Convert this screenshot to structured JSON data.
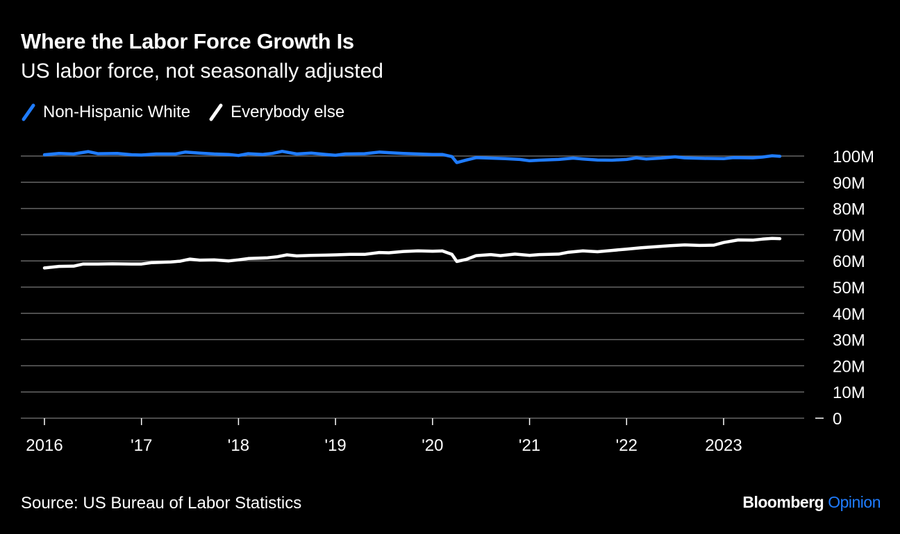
{
  "title": "Where the Labor Force Growth Is",
  "subtitle": "US labor force, not seasonally adjusted",
  "source": "Source: US Bureau of Labor Statistics",
  "brand": {
    "name": "Bloomberg",
    "product": "Opinion",
    "product_color": "#1f7cff"
  },
  "colors": {
    "white_series": "#1f7cff",
    "other_series": "#ffffff",
    "grid": "#666666",
    "axis_text": "#ffffff"
  },
  "legend": [
    {
      "label": "Non-Hispanic White",
      "color": "#1f7cff"
    },
    {
      "label": "Everybody else",
      "color": "#ffffff"
    }
  ],
  "chart_data": {
    "type": "line",
    "title": "Where the Labor Force Growth Is",
    "subtitle": "US labor force, not seasonally adjusted",
    "xlabel": "",
    "ylabel": "",
    "x_unit": "year",
    "xlim": [
      2015.75,
      2023.85
    ],
    "ylim": [
      0,
      100
    ],
    "y_unit": "millions",
    "y_ticks": [
      0,
      10,
      20,
      30,
      40,
      50,
      60,
      70,
      80,
      90,
      100
    ],
    "y_tick_labels": [
      "0",
      "10M",
      "20M",
      "30M",
      "40M",
      "50M",
      "60M",
      "70M",
      "80M",
      "90M",
      "100M"
    ],
    "x_ticks": [
      2016,
      2017,
      2018,
      2019,
      2020,
      2021,
      2022,
      2023
    ],
    "x_tick_labels": [
      "2016",
      "'17",
      "'18",
      "'19",
      "'20",
      "'21",
      "'22",
      "2023"
    ],
    "grid": true,
    "legend_position": "top-left",
    "series": [
      {
        "name": "Non-Hispanic White",
        "color": "#1f7cff",
        "points": [
          [
            2016.0,
            100.5
          ],
          [
            2016.15,
            101.0
          ],
          [
            2016.3,
            100.8
          ],
          [
            2016.45,
            101.7
          ],
          [
            2016.55,
            100.9
          ],
          [
            2016.75,
            101.0
          ],
          [
            2016.9,
            100.5
          ],
          [
            2017.0,
            100.4
          ],
          [
            2017.15,
            100.8
          ],
          [
            2017.35,
            100.8
          ],
          [
            2017.45,
            101.5
          ],
          [
            2017.6,
            101.1
          ],
          [
            2017.75,
            100.8
          ],
          [
            2017.9,
            100.6
          ],
          [
            2018.0,
            100.2
          ],
          [
            2018.1,
            100.9
          ],
          [
            2018.25,
            100.6
          ],
          [
            2018.35,
            101.0
          ],
          [
            2018.45,
            101.8
          ],
          [
            2018.6,
            100.8
          ],
          [
            2018.75,
            101.1
          ],
          [
            2018.9,
            100.6
          ],
          [
            2019.0,
            100.3
          ],
          [
            2019.1,
            100.8
          ],
          [
            2019.3,
            100.9
          ],
          [
            2019.45,
            101.5
          ],
          [
            2019.55,
            101.3
          ],
          [
            2019.7,
            101.0
          ],
          [
            2019.85,
            100.8
          ],
          [
            2020.0,
            100.6
          ],
          [
            2020.1,
            100.6
          ],
          [
            2020.2,
            99.8
          ],
          [
            2020.25,
            97.5
          ],
          [
            2020.35,
            98.5
          ],
          [
            2020.45,
            99.4
          ],
          [
            2020.6,
            99.2
          ],
          [
            2020.75,
            99.0
          ],
          [
            2020.9,
            98.7
          ],
          [
            2021.0,
            98.2
          ],
          [
            2021.1,
            98.4
          ],
          [
            2021.3,
            98.7
          ],
          [
            2021.45,
            99.2
          ],
          [
            2021.55,
            98.9
          ],
          [
            2021.7,
            98.5
          ],
          [
            2021.85,
            98.4
          ],
          [
            2022.0,
            98.7
          ],
          [
            2022.1,
            99.3
          ],
          [
            2022.2,
            98.9
          ],
          [
            2022.35,
            99.2
          ],
          [
            2022.5,
            99.7
          ],
          [
            2022.6,
            99.3
          ],
          [
            2022.8,
            99.1
          ],
          [
            2023.0,
            99.0
          ],
          [
            2023.1,
            99.4
          ],
          [
            2023.3,
            99.3
          ],
          [
            2023.4,
            99.6
          ],
          [
            2023.5,
            100.1
          ],
          [
            2023.58,
            99.9
          ]
        ]
      },
      {
        "name": "Everybody else",
        "color": "#ffffff",
        "points": [
          [
            2016.0,
            57.3
          ],
          [
            2016.15,
            57.9
          ],
          [
            2016.3,
            58.0
          ],
          [
            2016.4,
            58.8
          ],
          [
            2016.55,
            58.8
          ],
          [
            2016.7,
            58.9
          ],
          [
            2016.9,
            58.8
          ],
          [
            2017.0,
            58.8
          ],
          [
            2017.1,
            59.3
          ],
          [
            2017.3,
            59.6
          ],
          [
            2017.4,
            59.9
          ],
          [
            2017.5,
            60.7
          ],
          [
            2017.6,
            60.3
          ],
          [
            2017.75,
            60.4
          ],
          [
            2017.9,
            60.0
          ],
          [
            2018.0,
            60.4
          ],
          [
            2018.1,
            60.9
          ],
          [
            2018.3,
            61.2
          ],
          [
            2018.4,
            61.6
          ],
          [
            2018.5,
            62.3
          ],
          [
            2018.6,
            61.9
          ],
          [
            2018.75,
            62.1
          ],
          [
            2018.9,
            62.2
          ],
          [
            2019.0,
            62.3
          ],
          [
            2019.15,
            62.5
          ],
          [
            2019.3,
            62.5
          ],
          [
            2019.45,
            63.2
          ],
          [
            2019.55,
            63.1
          ],
          [
            2019.7,
            63.6
          ],
          [
            2019.85,
            63.8
          ],
          [
            2020.0,
            63.7
          ],
          [
            2020.1,
            63.8
          ],
          [
            2020.2,
            62.5
          ],
          [
            2020.25,
            59.8
          ],
          [
            2020.35,
            60.6
          ],
          [
            2020.45,
            62.0
          ],
          [
            2020.6,
            62.4
          ],
          [
            2020.7,
            62.0
          ],
          [
            2020.85,
            62.6
          ],
          [
            2021.0,
            62.1
          ],
          [
            2021.1,
            62.4
          ],
          [
            2021.3,
            62.6
          ],
          [
            2021.4,
            63.3
          ],
          [
            2021.55,
            63.8
          ],
          [
            2021.7,
            63.5
          ],
          [
            2021.85,
            64.0
          ],
          [
            2022.0,
            64.5
          ],
          [
            2022.15,
            65.0
          ],
          [
            2022.3,
            65.4
          ],
          [
            2022.45,
            65.8
          ],
          [
            2022.6,
            66.1
          ],
          [
            2022.75,
            65.9
          ],
          [
            2022.9,
            66.0
          ],
          [
            2023.0,
            67.0
          ],
          [
            2023.15,
            68.0
          ],
          [
            2023.3,
            67.9
          ],
          [
            2023.4,
            68.3
          ],
          [
            2023.5,
            68.6
          ],
          [
            2023.58,
            68.5
          ]
        ]
      }
    ]
  }
}
